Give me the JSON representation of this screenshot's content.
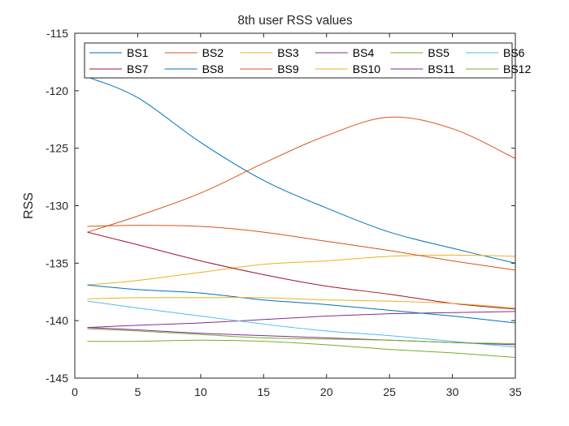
{
  "chart_data": {
    "type": "line",
    "title": "8th user RSS values",
    "xlabel": "",
    "ylabel": "RSS",
    "xlim": [
      0,
      35
    ],
    "ylim": [
      -145,
      -115
    ],
    "xticks": [
      0,
      5,
      10,
      15,
      20,
      25,
      30,
      35
    ],
    "yticks": [
      -145,
      -140,
      -135,
      -130,
      -125,
      -120,
      -115
    ],
    "grid": false,
    "legend_location": "top (inside), 6 columns",
    "x": [
      1,
      5,
      10,
      15,
      20,
      25,
      30,
      35
    ],
    "series": [
      {
        "name": "BS1",
        "color": "#0072BD",
        "values": [
          -118.8,
          -120.6,
          -124.5,
          -127.8,
          -130.2,
          -132.3,
          -133.7,
          -135.0
        ]
      },
      {
        "name": "BS2",
        "color": "#D95319",
        "values": [
          -132.3,
          -130.9,
          -128.9,
          -126.3,
          -123.9,
          -122.3,
          -123.3,
          -125.9
        ]
      },
      {
        "name": "BS3",
        "color": "#EDB120",
        "values": [
          -136.9,
          -136.5,
          -135.8,
          -135.1,
          -134.8,
          -134.4,
          -134.3,
          -134.4
        ]
      },
      {
        "name": "BS4",
        "color": "#7E2F8E",
        "values": [
          -140.6,
          -140.4,
          -140.2,
          -139.9,
          -139.6,
          -139.4,
          -139.3,
          -139.2
        ]
      },
      {
        "name": "BS5",
        "color": "#77AC30",
        "values": [
          -141.8,
          -141.8,
          -141.7,
          -141.8,
          -142.1,
          -142.5,
          -142.8,
          -143.2
        ]
      },
      {
        "name": "BS6",
        "color": "#4DBEEE",
        "values": [
          -138.3,
          -138.9,
          -139.6,
          -140.3,
          -140.9,
          -141.3,
          -141.8,
          -142.3
        ]
      },
      {
        "name": "BS7",
        "color": "#A2142F",
        "values": [
          -132.3,
          -133.4,
          -134.8,
          -136.0,
          -137.0,
          -137.7,
          -138.5,
          -139.0
        ]
      },
      {
        "name": "BS8",
        "color": "#0072BD",
        "values": [
          -136.9,
          -137.3,
          -137.6,
          -138.2,
          -138.6,
          -139.1,
          -139.6,
          -140.2
        ]
      },
      {
        "name": "BS9",
        "color": "#D95319",
        "values": [
          -131.8,
          -131.7,
          -131.8,
          -132.3,
          -133.1,
          -133.9,
          -134.8,
          -135.6
        ]
      },
      {
        "name": "BS10",
        "color": "#EDB120",
        "values": [
          -138.1,
          -138.0,
          -138.0,
          -138.0,
          -138.2,
          -138.3,
          -138.5,
          -138.9
        ]
      },
      {
        "name": "BS11",
        "color": "#7E2F8E",
        "values": [
          -140.6,
          -140.8,
          -141.1,
          -141.3,
          -141.5,
          -141.7,
          -141.9,
          -142.1
        ]
      },
      {
        "name": "BS12",
        "color": "#77AC30",
        "values": [
          -140.7,
          -140.9,
          -141.2,
          -141.5,
          -141.6,
          -141.7,
          -141.9,
          -142.0
        ]
      }
    ]
  }
}
